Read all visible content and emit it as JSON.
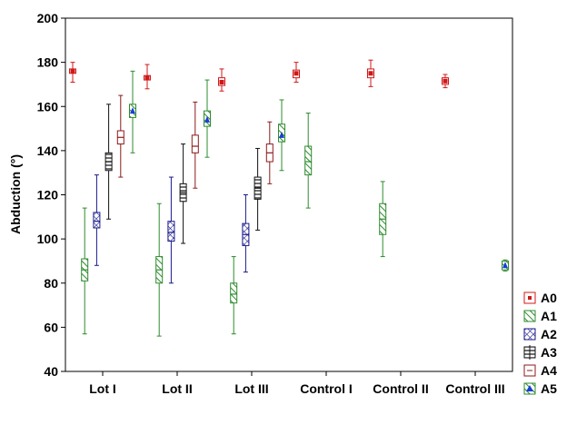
{
  "chart_data": {
    "type": "box",
    "ylabel": "Abduction (°)",
    "xlabel": "",
    "ylim": [
      40,
      200
    ],
    "yticks": [
      40,
      60,
      80,
      100,
      120,
      140,
      160,
      180,
      200
    ],
    "categories": [
      "Lot I",
      "Lot II",
      "Lot III",
      "Control I",
      "Control II",
      "Control III"
    ],
    "legend_position": "right-bottom",
    "series": [
      {
        "name": "A0",
        "color": "#d01818",
        "pattern": "solid-point",
        "boxes": [
          {
            "category": "Lot I",
            "mean": 176,
            "box_low": 175,
            "box_high": 177,
            "whisker_low": 171,
            "whisker_high": 180
          },
          {
            "category": "Lot II",
            "mean": 173,
            "box_low": 172,
            "box_high": 174,
            "whisker_low": 168,
            "whisker_high": 179
          },
          {
            "category": "Lot III",
            "mean": 171,
            "box_low": 169.5,
            "box_high": 173,
            "whisker_low": 167,
            "whisker_high": 177
          },
          {
            "category": "Control I",
            "mean": 175,
            "box_low": 173,
            "box_high": 176.5,
            "whisker_low": 171,
            "whisker_high": 180
          },
          {
            "category": "Control II",
            "mean": 175,
            "box_low": 173,
            "box_high": 177,
            "whisker_low": 169,
            "whisker_high": 181
          },
          {
            "category": "Control III",
            "mean": 171.5,
            "box_low": 170,
            "box_high": 173,
            "whisker_low": 168.5,
            "whisker_high": 174.5
          }
        ]
      },
      {
        "name": "A1",
        "color": "#2e8b2e",
        "pattern": "diagonal",
        "boxes": [
          {
            "category": "Lot I",
            "mean": 86,
            "box_low": 81,
            "box_high": 91,
            "whisker_low": 57,
            "whisker_high": 114
          },
          {
            "category": "Lot II",
            "mean": 86,
            "box_low": 80,
            "box_high": 92,
            "whisker_low": 56,
            "whisker_high": 116
          },
          {
            "category": "Lot III",
            "mean": 75,
            "box_low": 71,
            "box_high": 80,
            "whisker_low": 57,
            "whisker_high": 92
          },
          {
            "category": "Control I",
            "mean": 135,
            "box_low": 129,
            "box_high": 142,
            "whisker_low": 114,
            "whisker_high": 157
          },
          {
            "category": "Control II",
            "mean": 109,
            "box_low": 102,
            "box_high": 116,
            "whisker_low": 92,
            "whisker_high": 126
          }
        ]
      },
      {
        "name": "A2",
        "color": "#1a1a8c",
        "pattern": "crosshatch",
        "boxes": [
          {
            "category": "Lot I",
            "mean": 108,
            "box_low": 105,
            "box_high": 112,
            "whisker_low": 88,
            "whisker_high": 129
          },
          {
            "category": "Lot II",
            "mean": 103,
            "box_low": 99,
            "box_high": 108,
            "whisker_low": 80,
            "whisker_high": 128
          },
          {
            "category": "Lot III",
            "mean": 102,
            "box_low": 97,
            "box_high": 107,
            "whisker_low": 85,
            "whisker_high": 120
          }
        ]
      },
      {
        "name": "A3",
        "color": "#111111",
        "pattern": "horizontal-lines",
        "boxes": [
          {
            "category": "Lot I",
            "mean": 135,
            "box_low": 131,
            "box_high": 139,
            "whisker_low": 109,
            "whisker_high": 161
          },
          {
            "category": "Lot II",
            "mean": 121,
            "box_low": 117,
            "box_high": 125,
            "whisker_low": 98,
            "whisker_high": 143
          },
          {
            "category": "Lot III",
            "mean": 123,
            "box_low": 118,
            "box_high": 128,
            "whisker_low": 104,
            "whisker_high": 141
          }
        ]
      },
      {
        "name": "A4",
        "color": "#8b1a1a",
        "pattern": "vertical-line",
        "boxes": [
          {
            "category": "Lot I",
            "mean": 146,
            "box_low": 143,
            "box_high": 149,
            "whisker_low": 128,
            "whisker_high": 165
          },
          {
            "category": "Lot II",
            "mean": 142,
            "box_low": 139,
            "box_high": 147,
            "whisker_low": 123,
            "whisker_high": 162
          },
          {
            "category": "Lot III",
            "mean": 139,
            "box_low": 135,
            "box_high": 143,
            "whisker_low": 125,
            "whisker_high": 153
          }
        ]
      },
      {
        "name": "A5",
        "color": "#2e8b2e",
        "pattern": "diagonal-triangle",
        "markerColor": "#1a3cd8",
        "boxes": [
          {
            "category": "Lot I",
            "mean": 158,
            "box_low": 155,
            "box_high": 161,
            "whisker_low": 139,
            "whisker_high": 176
          },
          {
            "category": "Lot II",
            "mean": 154,
            "box_low": 151,
            "box_high": 158,
            "whisker_low": 137,
            "whisker_high": 172
          },
          {
            "category": "Lot III",
            "mean": 147,
            "box_low": 144,
            "box_high": 152,
            "whisker_low": 131,
            "whisker_high": 163
          },
          {
            "category": "Control III",
            "mean": 88,
            "box_low": 86,
            "box_high": 90,
            "whisker_low": 85.5,
            "whisker_high": 90.5
          }
        ]
      }
    ]
  }
}
